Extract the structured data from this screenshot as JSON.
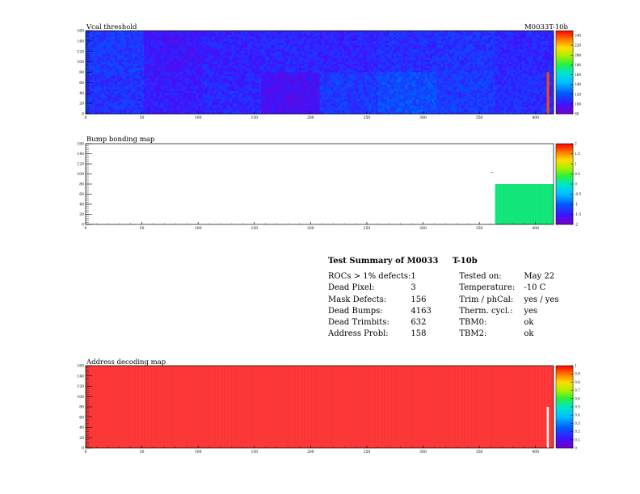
{
  "chart_data": [
    {
      "type": "heatmap",
      "title": "Vcal threshold",
      "module_label": "M0033T-10b",
      "x_ticks": [
        "0",
        "50",
        "100",
        "150",
        "200",
        "250",
        "300",
        "350",
        "400"
      ],
      "y_ticks": [
        "0",
        "20",
        "40",
        "60",
        "80",
        "100",
        "120",
        "140",
        "160"
      ],
      "xlim": [
        0,
        416
      ],
      "ylim": [
        0,
        160
      ],
      "zlim": [
        80,
        250
      ],
      "z_ticks": [
        "80",
        "100",
        "120",
        "140",
        "160",
        "180",
        "200",
        "220",
        "240"
      ],
      "roc_mean_values": [
        {
          "row": "top",
          "values": [
            112,
            100,
            104,
            106,
            104,
            108,
            110,
            106
          ]
        },
        {
          "row": "bottom",
          "values": [
            110,
            102,
            106,
            96,
            112,
            118,
            112,
            108
          ]
        }
      ],
      "hot_column": {
        "x": 410,
        "y_range": [
          0,
          80
        ],
        "value": 240
      }
    },
    {
      "type": "heatmap",
      "title": "Bump bonding map",
      "x_ticks": [
        "0",
        "50",
        "100",
        "150",
        "200",
        "250",
        "300",
        "350",
        "400"
      ],
      "y_ticks": [
        "0",
        "20",
        "40",
        "60",
        "80",
        "100",
        "120",
        "140",
        "160"
      ],
      "xlim": [
        0,
        416
      ],
      "ylim": [
        0,
        160
      ],
      "zlim": [
        -2,
        2
      ],
      "z_ticks": [
        "-2",
        "-1.5",
        "-1",
        "-0.5",
        "0",
        "0.5",
        "1",
        "1.5",
        "2"
      ],
      "filled_region": {
        "x_range": [
          364,
          416
        ],
        "y_range": [
          0,
          80
        ],
        "value": 0.2
      }
    },
    {
      "type": "heatmap",
      "title": "Address decoding map",
      "x_ticks": [
        "0",
        "50",
        "100",
        "150",
        "200",
        "250",
        "300",
        "350",
        "400"
      ],
      "y_ticks": [
        "0",
        "20",
        "40",
        "60",
        "80",
        "100",
        "120",
        "140",
        "160"
      ],
      "xlim": [
        0,
        416
      ],
      "ylim": [
        0,
        160
      ],
      "zlim": [
        0,
        1
      ],
      "z_ticks": [
        "0",
        "0.1",
        "0.2",
        "0.3",
        "0.4",
        "0.5",
        "0.6",
        "0.7",
        "0.8",
        "0.9",
        "1"
      ],
      "fill_value": 1,
      "dead_column": {
        "x": 410,
        "y_range": [
          0,
          80
        ],
        "value": 0
      }
    }
  ],
  "summary": {
    "title_module": "Test Summary of M0033",
    "title_grade": "T-10b",
    "rows": [
      {
        "label": "ROCs > 1% defects:",
        "value": "1",
        "label2": "Tested on:",
        "value2": "May 22"
      },
      {
        "label": "Dead Pixel:",
        "value": "3",
        "label2": "Temperature:",
        "value2": "-10 C"
      },
      {
        "label": "Mask Defects:",
        "value": "156",
        "label2": "Trim / phCal:",
        "value2": "yes / yes"
      },
      {
        "label": "Dead Bumps:",
        "value": "4163",
        "label2": "Therm. cycl.:",
        "value2": "yes"
      },
      {
        "label": "Dead Trimbits:",
        "value": "632",
        "label2": "TBM0:",
        "value2": "ok"
      },
      {
        "label": "Address Probl:",
        "value": "158",
        "label2": "TBM2:",
        "value2": "ok"
      }
    ]
  }
}
